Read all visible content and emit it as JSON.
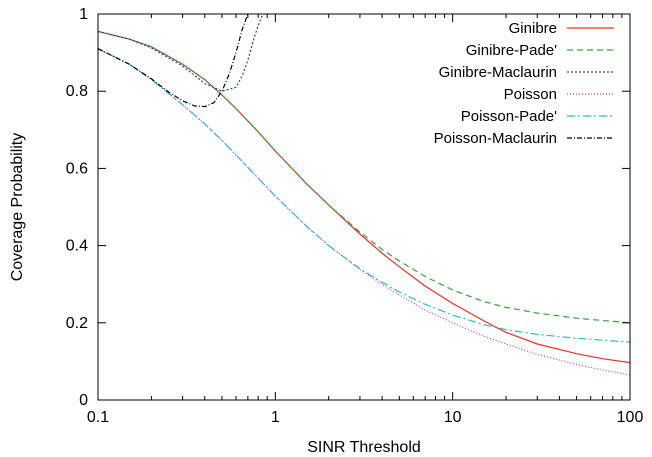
{
  "chart_data": {
    "type": "line",
    "title": "",
    "xlabel": "SINR Threshold",
    "ylabel": "Coverage Probability",
    "xscale": "log",
    "xlim": [
      0.1,
      100
    ],
    "ylim": [
      0,
      1
    ],
    "xticks": [
      0.1,
      1,
      10,
      100
    ],
    "xtick_labels": [
      "0.1",
      "1",
      "10",
      "100"
    ],
    "yticks": [
      0,
      0.2,
      0.4,
      0.6,
      0.8,
      1
    ],
    "ytick_labels": [
      "0",
      "0.2",
      "0.4",
      "0.6",
      "0.8",
      "1"
    ],
    "grid": false,
    "legend_position": "top-right",
    "series": [
      {
        "name": "Ginibre",
        "color": "#e8302a",
        "dash": "solid",
        "x": [
          0.1,
          0.15,
          0.2,
          0.3,
          0.4,
          0.5,
          0.6,
          0.8,
          1,
          1.5,
          2,
          3,
          4,
          5,
          7,
          10,
          15,
          20,
          30,
          50,
          70,
          100
        ],
        "y": [
          0.955,
          0.935,
          0.915,
          0.87,
          0.83,
          0.79,
          0.755,
          0.695,
          0.645,
          0.56,
          0.505,
          0.43,
          0.38,
          0.345,
          0.295,
          0.25,
          0.205,
          0.175,
          0.145,
          0.12,
          0.107,
          0.097
        ]
      },
      {
        "name": "Ginibre-Pade'",
        "color": "#3aa03a",
        "dash": "6,4",
        "x": [
          0.1,
          0.15,
          0.2,
          0.3,
          0.4,
          0.5,
          0.6,
          0.8,
          1,
          1.5,
          2,
          3,
          4,
          5,
          7,
          10,
          15,
          20,
          30,
          50,
          70,
          100
        ],
        "y": [
          0.955,
          0.935,
          0.915,
          0.87,
          0.83,
          0.79,
          0.755,
          0.695,
          0.645,
          0.56,
          0.505,
          0.435,
          0.39,
          0.36,
          0.32,
          0.285,
          0.255,
          0.24,
          0.225,
          0.212,
          0.206,
          0.2
        ]
      },
      {
        "name": "Ginibre-Maclaurin",
        "color": "#2a3fb0",
        "dash": "2,2",
        "x": [
          0.1,
          0.15,
          0.2,
          0.3,
          0.4,
          0.5,
          0.6,
          0.65,
          0.7,
          0.75,
          0.8,
          0.85
        ],
        "y": [
          0.955,
          0.935,
          0.912,
          0.865,
          0.82,
          0.8,
          0.81,
          0.84,
          0.88,
          0.93,
          0.97,
          1.0
        ]
      },
      {
        "name": "Poisson",
        "color": "#b040b0",
        "dash": "1,2",
        "x": [
          0.1,
          0.15,
          0.2,
          0.3,
          0.4,
          0.5,
          0.6,
          0.8,
          1,
          1.5,
          2,
          3,
          4,
          5,
          7,
          10,
          15,
          20,
          30,
          50,
          70,
          100
        ],
        "y": [
          0.91,
          0.87,
          0.83,
          0.765,
          0.715,
          0.672,
          0.635,
          0.575,
          0.528,
          0.45,
          0.4,
          0.338,
          0.3,
          0.272,
          0.233,
          0.2,
          0.165,
          0.145,
          0.118,
          0.092,
          0.078,
          0.065
        ]
      },
      {
        "name": "Poisson-Pade'",
        "color": "#30b8c8",
        "dash": "8,3,2,3",
        "x": [
          0.1,
          0.15,
          0.2,
          0.3,
          0.4,
          0.5,
          0.6,
          0.8,
          1,
          1.5,
          2,
          3,
          4,
          5,
          7,
          10,
          15,
          20,
          30,
          50,
          70,
          100
        ],
        "y": [
          0.91,
          0.87,
          0.83,
          0.765,
          0.715,
          0.672,
          0.635,
          0.575,
          0.528,
          0.45,
          0.4,
          0.34,
          0.305,
          0.28,
          0.248,
          0.22,
          0.195,
          0.182,
          0.17,
          0.16,
          0.155,
          0.15
        ]
      },
      {
        "name": "Poisson-Maclaurin",
        "color": "#000000",
        "dash": "5,2,1,2",
        "x": [
          0.1,
          0.15,
          0.2,
          0.25,
          0.3,
          0.35,
          0.4,
          0.45,
          0.5,
          0.55,
          0.6,
          0.65,
          0.7
        ],
        "y": [
          0.91,
          0.87,
          0.832,
          0.798,
          0.775,
          0.762,
          0.76,
          0.77,
          0.8,
          0.845,
          0.9,
          0.96,
          1.0
        ]
      }
    ]
  }
}
